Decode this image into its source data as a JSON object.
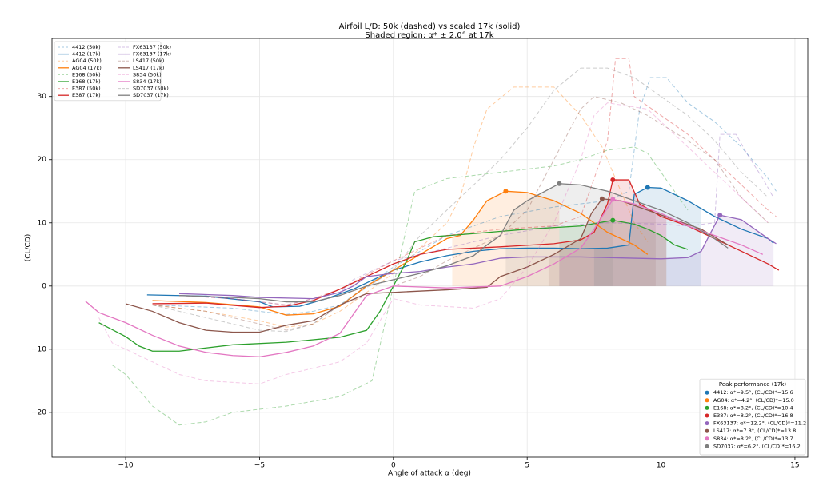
{
  "chart_data": {
    "type": "line",
    "title": "Airfoil L/D: 50k (dashed) vs scaled 17k (solid)",
    "subtitle": "Shaded region: α* ± 2.0° at 17k",
    "shade_halfwidth": 2.0,
    "x_label": "Angle of attack α (deg)",
    "y_label": "(CL/CD)",
    "xlim": [
      -12.75,
      15.48
    ],
    "ylim": [
      -27.1,
      39.2
    ],
    "xticks": [
      {
        "value": -10,
        "label": "−10"
      },
      {
        "value": -5,
        "label": "−5"
      },
      0,
      5,
      10,
      15
    ],
    "yticks": [
      {
        "value": -20,
        "label": "−20"
      },
      {
        "value": -10,
        "label": "−10"
      },
      0,
      10,
      20,
      30
    ],
    "grid": true,
    "legend": "upper left",
    "peak_legend_title": "Peak performance (17k)",
    "peak_legend": "lower right",
    "series": [
      {
        "name": "4412 (50k)",
        "color": "#1f77b4",
        "style": "dashed",
        "x": [
          -9,
          -6,
          -4,
          -3,
          -2,
          0,
          2,
          4,
          6,
          8,
          8.8,
          9.2,
          9.6,
          10.2,
          11,
          12,
          13,
          14,
          14.3
        ],
        "values": [
          -3,
          -3.5,
          -4.5,
          -4,
          -3,
          3,
          8,
          11,
          12.5,
          13.5,
          15,
          28,
          33,
          33,
          29,
          26,
          22,
          17,
          15
        ]
      },
      {
        "name": "4412 (17k)",
        "color": "#1f77b4",
        "style": "solid",
        "x": [
          -9.2,
          -7,
          -5,
          -4.5,
          -3.5,
          -2.5,
          -1.5,
          0,
          1,
          2,
          3,
          4,
          5,
          6,
          7,
          8,
          8.8,
          9.0,
          9.5,
          10,
          11,
          12,
          13,
          14,
          14.2
        ],
        "values": [
          -1.4,
          -1.6,
          -2.5,
          -3.3,
          -3.2,
          -2,
          -0.5,
          2.5,
          3.8,
          4.8,
          5.5,
          5.9,
          6.0,
          6.0,
          5.9,
          6.0,
          6.5,
          14.5,
          15.6,
          15.5,
          13.5,
          11,
          9,
          7.5,
          6.8
        ],
        "peak": {
          "x": 9.5,
          "value": 15.6,
          "label": "4412: α*=9.5°, (CL/CD)*=15.6"
        }
      },
      {
        "name": "AG04 (50k)",
        "color": "#ff7f0e",
        "style": "dashed",
        "x": [
          -9,
          -7,
          -5,
          -4,
          -3,
          -2,
          0,
          1,
          2,
          2.5,
          3,
          3.5,
          4.5,
          6,
          7,
          7.8,
          8.5,
          9,
          9.5
        ],
        "values": [
          -3,
          -4,
          -5.5,
          -6.5,
          -6,
          -4,
          2,
          6,
          10,
          14,
          22,
          28,
          31.5,
          31.5,
          27,
          22,
          15,
          10,
          7
        ]
      },
      {
        "name": "AG04 (17k)",
        "color": "#ff7f0e",
        "style": "solid",
        "x": [
          -9,
          -7,
          -5,
          -4,
          -3,
          -2,
          -1,
          0,
          1,
          2,
          2.5,
          3,
          3.5,
          4.2,
          5,
          6,
          7,
          8,
          9,
          9.5
        ],
        "values": [
          -2.3,
          -2.6,
          -3.3,
          -4.6,
          -4.4,
          -3.2,
          0,
          2.5,
          5,
          7.5,
          8,
          10.5,
          13.5,
          15.0,
          14.8,
          13.5,
          11.5,
          8.5,
          6.5,
          5.0
        ],
        "peak": {
          "x": 4.2,
          "value": 15.0,
          "label": "AG04: α*=4.2°, (CL/CD)*=15.0"
        }
      },
      {
        "name": "E168 (50k)",
        "color": "#2ca02c",
        "style": "dashed",
        "x": [
          -10.5,
          -10,
          -9,
          -8,
          -7,
          -6,
          -4,
          -2,
          -0.8,
          0,
          0.8,
          2,
          4,
          6,
          7,
          8,
          9,
          9.5,
          10,
          10.5,
          11
        ],
        "values": [
          -12.5,
          -14,
          -19,
          -22,
          -21.5,
          -20,
          -19,
          -17.5,
          -15,
          0,
          15,
          17,
          18,
          19,
          20,
          21.5,
          22,
          21,
          18,
          15,
          12
        ]
      },
      {
        "name": "E168 (17k)",
        "color": "#2ca02c",
        "style": "solid",
        "x": [
          -11,
          -10,
          -9.5,
          -9,
          -8,
          -7,
          -6,
          -4,
          -2,
          -1,
          -0.5,
          0,
          0.5,
          0.8,
          1.5,
          3,
          5,
          7,
          8.2,
          9,
          9.5,
          10,
          10.5,
          11
        ],
        "values": [
          -5.8,
          -8,
          -9.5,
          -10.3,
          -10.3,
          -9.8,
          -9.3,
          -8.9,
          -8.1,
          -7,
          -4,
          0,
          4,
          7,
          7.8,
          8.3,
          9.0,
          9.5,
          10.4,
          9.8,
          9,
          8,
          6.5,
          5.8
        ],
        "peak": {
          "x": 8.2,
          "value": 10.4,
          "label": "E168: α*=8.2°, (CL/CD)*=10.4"
        }
      },
      {
        "name": "E387 (50k)",
        "color": "#d62728",
        "style": "dashed",
        "x": [
          -8,
          -6,
          -4,
          -3,
          -2,
          0,
          1,
          2,
          4,
          6,
          7,
          8,
          8.3,
          8.8,
          9,
          10,
          11,
          12,
          13,
          14,
          14.3
        ],
        "values": [
          -1.5,
          -2,
          -3,
          -2,
          -0.5,
          4,
          6,
          8,
          9,
          9.5,
          11,
          23,
          36,
          36,
          30,
          27,
          24,
          20,
          16,
          12,
          11
        ]
      },
      {
        "name": "E387 (17k)",
        "color": "#d62728",
        "style": "solid",
        "x": [
          -9,
          -7,
          -5,
          -4,
          -3,
          -2,
          -1,
          0,
          1,
          2,
          4,
          6,
          7,
          7.5,
          8,
          8.2,
          8.8,
          9.2,
          10,
          11,
          12,
          13,
          14,
          14.4
        ],
        "values": [
          -2.8,
          -2.7,
          -3.4,
          -3.2,
          -2.3,
          -0.5,
          1.5,
          3.5,
          5,
          5.8,
          6.2,
          6.7,
          7.3,
          8.5,
          13,
          16.8,
          16.8,
          13,
          11,
          9.5,
          7.5,
          5.5,
          3.5,
          2.5
        ],
        "peak": {
          "x": 8.2,
          "value": 16.8,
          "label": "E387: α*=8.2°, (CL/CD)*=16.8"
        }
      },
      {
        "name": "FX63137 (50k)",
        "color": "#9467bd",
        "style": "dashed",
        "x": [
          -8,
          -6,
          -4,
          -2,
          -1.5,
          0,
          2,
          4,
          6,
          8,
          10,
          11,
          12,
          12.2,
          12.8,
          13.2,
          13.8,
          14.2
        ],
        "values": [
          -1.5,
          -2,
          -3,
          -1,
          1,
          4,
          6,
          8,
          9.5,
          10,
          9.8,
          9.5,
          10,
          24,
          24,
          21,
          17,
          14
        ]
      },
      {
        "name": "FX63137 (17k)",
        "color": "#9467bd",
        "style": "solid",
        "x": [
          -8,
          -6,
          -5,
          -3,
          -2,
          -1.5,
          -1,
          0,
          1,
          2,
          3,
          4,
          5,
          7,
          9,
          10,
          11,
          11.5,
          11.8,
          12.2,
          13,
          13.5,
          14,
          14.3
        ],
        "values": [
          -1.2,
          -1.5,
          -1.8,
          -2,
          -1,
          0,
          1.5,
          2,
          2.3,
          3,
          3.5,
          4.4,
          4.6,
          4.6,
          4.4,
          4.3,
          4.5,
          5.5,
          8,
          11.2,
          10.5,
          9,
          7.5,
          6.7
        ],
        "peak": {
          "x": 12.2,
          "value": 11.2,
          "label": "FX63137: α*=12.2°, (CL/CD)*=11.2"
        }
      },
      {
        "name": "LS417 (50k)",
        "color": "#8c564b",
        "style": "dashed",
        "x": [
          -9,
          -7,
          -5,
          -4,
          -3,
          -2,
          0,
          1,
          2,
          4,
          5,
          6,
          7,
          7.5,
          8.5,
          9.5,
          11,
          12,
          13,
          14
        ],
        "values": [
          -3,
          -4,
          -6,
          -7,
          -6,
          -3,
          0,
          1.5,
          4,
          8,
          12,
          20,
          28,
          30,
          29,
          27,
          23,
          20,
          14,
          10
        ]
      },
      {
        "name": "LS417 (17k)",
        "color": "#8c564b",
        "style": "solid",
        "x": [
          -10,
          -9,
          -8,
          -7,
          -6,
          -5,
          -4,
          -3,
          -2,
          -1,
          0,
          2,
          3.5,
          4,
          5,
          6,
          7,
          7.4,
          7.8,
          8.5,
          9.5,
          10.5,
          11.5,
          12.5
        ],
        "values": [
          -2.8,
          -4,
          -5.8,
          -7,
          -7.3,
          -7.3,
          -6.2,
          -5.5,
          -3,
          -1.2,
          -1,
          -0.6,
          -0.2,
          1.5,
          3,
          5,
          7.5,
          11.5,
          13.8,
          13.5,
          12,
          10.5,
          9,
          6.5
        ],
        "peak": {
          "x": 7.8,
          "value": 13.8,
          "label": "LS417: α*=7.8°, (CL/CD)*=13.8"
        }
      },
      {
        "name": "S834 (50k)",
        "color": "#e377c2",
        "style": "dashed",
        "x": [
          -11,
          -10.5,
          -9,
          -8,
          -7,
          -5,
          -4,
          -2,
          -1,
          0,
          1,
          3,
          4,
          5,
          6,
          7,
          7.5,
          8,
          9.5,
          11,
          12,
          13,
          14
        ],
        "values": [
          -5,
          -9,
          -12,
          -14,
          -15,
          -15.5,
          -14,
          -12,
          -9,
          -2,
          -3,
          -3.5,
          -2,
          3,
          10,
          20,
          27,
          29,
          28,
          22,
          18,
          14,
          10
        ]
      },
      {
        "name": "S834 (17k)",
        "color": "#e377c2",
        "style": "solid",
        "x": [
          -11.5,
          -11,
          -10,
          -9,
          -8,
          -7,
          -6,
          -5,
          -4,
          -3,
          -2,
          -1,
          0,
          2,
          4,
          5,
          6,
          7,
          7.5,
          8.2,
          9,
          10,
          11,
          12,
          13,
          13.8
        ],
        "values": [
          -2.4,
          -4.2,
          -5.8,
          -7.8,
          -9.5,
          -10.5,
          -11,
          -11.2,
          -10.5,
          -9.5,
          -7.5,
          -1.5,
          0,
          -0.3,
          0,
          1.5,
          3.5,
          6,
          9,
          13.7,
          13,
          11.5,
          9.5,
          8,
          6.5,
          5
        ],
        "peak": {
          "x": 8.2,
          "value": 13.7,
          "label": "S834: α*=8.2°, (CL/CD)*=13.7"
        }
      },
      {
        "name": "SD7037 (50k)",
        "color": "#7f7f7f",
        "style": "dashed",
        "x": [
          -9,
          -7,
          -5,
          -4,
          -3,
          -2,
          0,
          1,
          2,
          3,
          4,
          5,
          6,
          7,
          8,
          9,
          10,
          11,
          12,
          13,
          14
        ],
        "values": [
          -3,
          -5,
          -7,
          -7.2,
          -6,
          -3,
          2.5,
          8,
          12,
          16,
          20,
          25,
          31,
          34.5,
          34.5,
          33,
          30,
          27,
          23,
          18,
          14
        ]
      },
      {
        "name": "SD7037 (17k)",
        "color": "#7f7f7f",
        "style": "solid",
        "x": [
          -8,
          -6,
          -5,
          -4,
          -3,
          -2,
          -1,
          0,
          1,
          2,
          3,
          3.5,
          4,
          4.5,
          5,
          6.2,
          7,
          8,
          9,
          10,
          11,
          12,
          12.5
        ],
        "values": [
          -1.5,
          -1.8,
          -2,
          -2.5,
          -2.5,
          -1.5,
          0,
          1,
          2,
          3.2,
          4.8,
          6.5,
          8,
          12,
          13.5,
          16.2,
          16,
          15,
          13.5,
          12,
          10,
          7.5,
          6
        ],
        "peak": {
          "x": 6.2,
          "value": 16.2,
          "label": "SD7037: α*=6.2°, (CL/CD)*=16.2"
        }
      }
    ]
  }
}
